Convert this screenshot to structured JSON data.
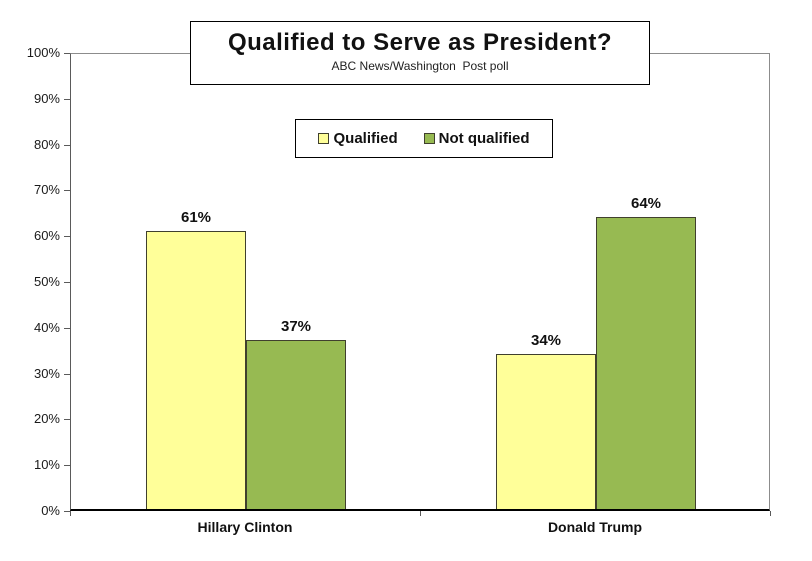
{
  "title": "Qualified to Serve as President?",
  "subtitle": "ABC News/Washington  Post poll",
  "legend": {
    "items": [
      {
        "label": "Qualified",
        "color": "#FFFF99"
      },
      {
        "label": "Not qualified",
        "color": "#97BA52"
      }
    ]
  },
  "colors": {
    "qualified_fill": "#FFFF99",
    "not_qualified_fill": "#97BA52",
    "bar_border": "#40402E",
    "plot_border": "#8C8C8C",
    "axis_line": "#000000",
    "text": "#111111",
    "background": "#FFFFFF"
  },
  "chart_data": {
    "type": "bar",
    "title": "Qualified to Serve as President?",
    "subtitle": "ABC News/Washington  Post poll",
    "categories": [
      "Hillary Clinton",
      "Donald Trump"
    ],
    "series": [
      {
        "name": "Qualified",
        "color": "#FFFF99",
        "values": [
          61,
          34
        ]
      },
      {
        "name": "Not qualified",
        "color": "#97BA52",
        "values": [
          37,
          64
        ]
      }
    ],
    "data_labels": [
      [
        "61%",
        "34%"
      ],
      [
        "37%",
        "64%"
      ]
    ],
    "xlabel": "",
    "ylabel": "",
    "ylim": [
      0,
      100
    ],
    "ytick_step": 10,
    "ytick_labels": [
      "0%",
      "10%",
      "20%",
      "30%",
      "40%",
      "50%",
      "60%",
      "70%",
      "80%",
      "90%",
      "100%"
    ],
    "grid": false,
    "legend_position": "top-center"
  }
}
